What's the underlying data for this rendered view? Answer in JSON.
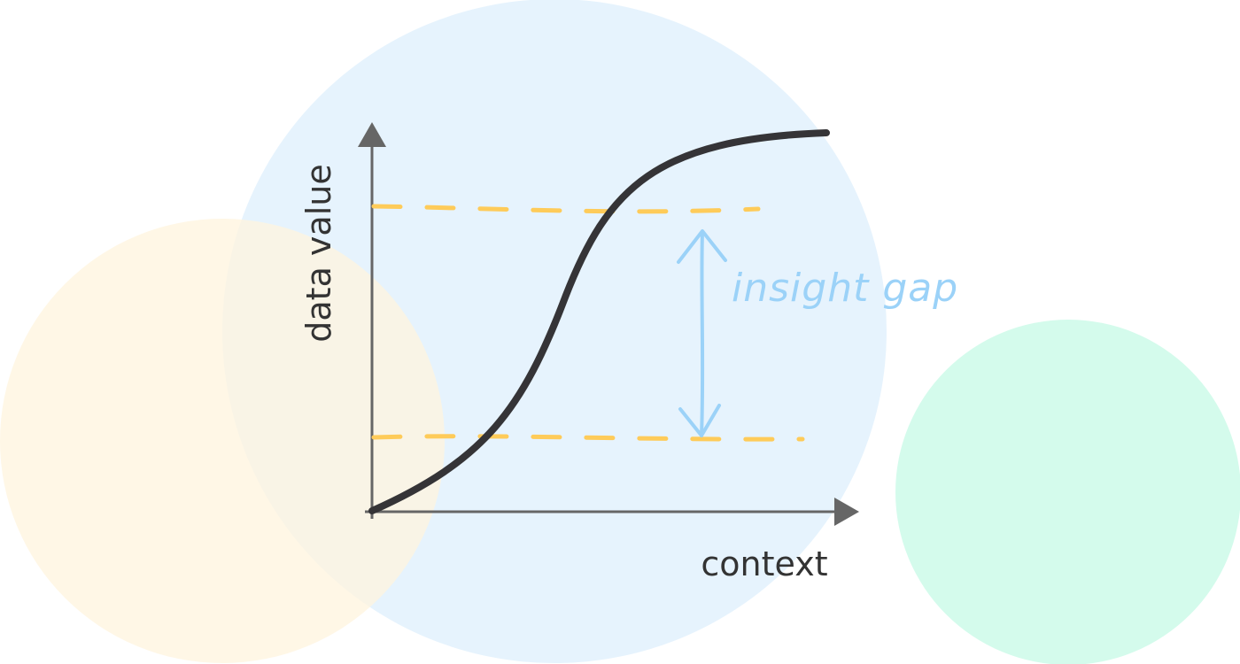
{
  "labels": {
    "y_axis": "data value",
    "x_axis": "context",
    "gap": "insight gap"
  },
  "colors": {
    "background": "#ffffff",
    "circle_blue": "#e6f3fd",
    "circle_yellow": "#fff4dd",
    "circle_green": "#d4fbec",
    "curve": "#353437",
    "axes": "#666666",
    "dashed_lines": "#fecb59",
    "gap_arrow": "#9bd2f8",
    "text": "#333333"
  },
  "icons": {
    "y_arrowhead": "arrow-up-icon",
    "x_arrowhead": "arrow-right-icon",
    "gap_arrow": "double-headed-arrow-icon"
  }
}
